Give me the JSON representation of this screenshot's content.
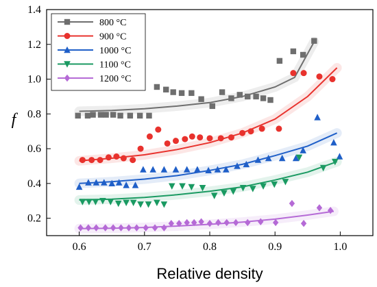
{
  "chart_data": {
    "type": "scatter",
    "xlabel": "Relative density",
    "ylabel": "f",
    "xlim": [
      0.55,
      1.05
    ],
    "ylim": [
      0.1,
      1.4
    ],
    "xticks": [
      0.6,
      0.7,
      0.8,
      0.9,
      1.0
    ],
    "yticks": [
      0.2,
      0.4,
      0.6,
      0.8,
      1.0,
      1.2,
      1.4
    ],
    "xtick_labels": [
      "0.6",
      "0.7",
      "0.8",
      "0.9",
      "1.0"
    ],
    "ytick_labels": [
      "0.2",
      "0.4",
      "0.6",
      "0.8",
      "1.0",
      "1.2",
      "1.4"
    ],
    "grid": false,
    "legend_position": "top-left",
    "series": [
      {
        "name": "800 °C",
        "color": "#6e6e6e",
        "marker": "square",
        "points": [
          [
            0.598,
            0.79
          ],
          [
            0.613,
            0.79
          ],
          [
            0.621,
            0.795
          ],
          [
            0.633,
            0.795
          ],
          [
            0.641,
            0.795
          ],
          [
            0.652,
            0.795
          ],
          [
            0.663,
            0.79
          ],
          [
            0.678,
            0.79
          ],
          [
            0.693,
            0.79
          ],
          [
            0.707,
            0.79
          ],
          [
            0.719,
            0.955
          ],
          [
            0.733,
            0.94
          ],
          [
            0.744,
            0.925
          ],
          [
            0.757,
            0.92
          ],
          [
            0.772,
            0.92
          ],
          [
            0.787,
            0.885
          ],
          [
            0.804,
            0.845
          ],
          [
            0.819,
            0.925
          ],
          [
            0.833,
            0.89
          ],
          [
            0.846,
            0.91
          ],
          [
            0.858,
            0.9
          ],
          [
            0.871,
            0.9
          ],
          [
            0.882,
            0.89
          ],
          [
            0.893,
            0.88
          ],
          [
            0.907,
            1.105
          ],
          [
            0.928,
            1.16
          ],
          [
            0.943,
            1.14
          ],
          [
            0.96,
            1.22
          ]
        ],
        "fit": [
          [
            0.6,
            0.815
          ],
          [
            0.65,
            0.82
          ],
          [
            0.7,
            0.83
          ],
          [
            0.75,
            0.845
          ],
          [
            0.8,
            0.865
          ],
          [
            0.85,
            0.9
          ],
          [
            0.9,
            0.955
          ],
          [
            0.93,
            1.01
          ],
          [
            0.96,
            1.215
          ]
        ]
      },
      {
        "name": "900 °C",
        "color": "#e8322d",
        "marker": "circle",
        "points": [
          [
            0.605,
            0.535
          ],
          [
            0.619,
            0.535
          ],
          [
            0.632,
            0.535
          ],
          [
            0.645,
            0.55
          ],
          [
            0.657,
            0.555
          ],
          [
            0.668,
            0.545
          ],
          [
            0.682,
            0.535
          ],
          [
            0.694,
            0.6
          ],
          [
            0.708,
            0.67
          ],
          [
            0.721,
            0.71
          ],
          [
            0.735,
            0.63
          ],
          [
            0.748,
            0.645
          ],
          [
            0.762,
            0.655
          ],
          [
            0.773,
            0.67
          ],
          [
            0.785,
            0.665
          ],
          [
            0.8,
            0.66
          ],
          [
            0.817,
            0.66
          ],
          [
            0.833,
            0.665
          ],
          [
            0.85,
            0.69
          ],
          [
            0.863,
            0.7
          ],
          [
            0.88,
            0.715
          ],
          [
            0.906,
            0.715
          ],
          [
            0.928,
            1.035
          ],
          [
            0.944,
            1.035
          ],
          [
            0.968,
            1.015
          ],
          [
            0.988,
            1.0
          ]
        ],
        "fit": [
          [
            0.6,
            0.53
          ],
          [
            0.65,
            0.545
          ],
          [
            0.7,
            0.565
          ],
          [
            0.75,
            0.595
          ],
          [
            0.8,
            0.635
          ],
          [
            0.85,
            0.69
          ],
          [
            0.9,
            0.77
          ],
          [
            0.95,
            0.9
          ],
          [
            0.995,
            1.065
          ]
        ]
      },
      {
        "name": "1000 °C",
        "color": "#1f5fc8",
        "marker": "triangle-up",
        "points": [
          [
            0.6,
            0.38
          ],
          [
            0.614,
            0.405
          ],
          [
            0.626,
            0.405
          ],
          [
            0.638,
            0.405
          ],
          [
            0.65,
            0.4
          ],
          [
            0.661,
            0.405
          ],
          [
            0.672,
            0.39
          ],
          [
            0.686,
            0.39
          ],
          [
            0.698,
            0.48
          ],
          [
            0.713,
            0.48
          ],
          [
            0.73,
            0.48
          ],
          [
            0.748,
            0.48
          ],
          [
            0.765,
            0.48
          ],
          [
            0.781,
            0.48
          ],
          [
            0.798,
            0.475
          ],
          [
            0.812,
            0.48
          ],
          [
            0.825,
            0.48
          ],
          [
            0.842,
            0.5
          ],
          [
            0.856,
            0.51
          ],
          [
            0.874,
            0.535
          ],
          [
            0.89,
            0.545
          ],
          [
            0.911,
            0.545
          ],
          [
            0.932,
            0.545
          ],
          [
            0.943,
            0.59
          ],
          [
            0.965,
            0.78
          ],
          [
            0.99,
            0.635
          ],
          [
            0.999,
            0.555
          ]
        ],
        "fit": [
          [
            0.6,
            0.4
          ],
          [
            0.65,
            0.41
          ],
          [
            0.7,
            0.425
          ],
          [
            0.75,
            0.445
          ],
          [
            0.8,
            0.475
          ],
          [
            0.85,
            0.51
          ],
          [
            0.9,
            0.56
          ],
          [
            0.95,
            0.615
          ],
          [
            0.995,
            0.69
          ]
        ]
      },
      {
        "name": "1100 °C",
        "color": "#1a9a62",
        "marker": "triangle-down",
        "points": [
          [
            0.605,
            0.295
          ],
          [
            0.615,
            0.295
          ],
          [
            0.625,
            0.295
          ],
          [
            0.636,
            0.3
          ],
          [
            0.648,
            0.295
          ],
          [
            0.66,
            0.285
          ],
          [
            0.672,
            0.29
          ],
          [
            0.683,
            0.29
          ],
          [
            0.694,
            0.28
          ],
          [
            0.706,
            0.28
          ],
          [
            0.719,
            0.29
          ],
          [
            0.73,
            0.28
          ],
          [
            0.742,
            0.385
          ],
          [
            0.758,
            0.385
          ],
          [
            0.772,
            0.38
          ],
          [
            0.789,
            0.375
          ],
          [
            0.807,
            0.33
          ],
          [
            0.822,
            0.345
          ],
          [
            0.836,
            0.355
          ],
          [
            0.851,
            0.375
          ],
          [
            0.866,
            0.37
          ],
          [
            0.882,
            0.385
          ],
          [
            0.899,
            0.395
          ],
          [
            0.916,
            0.41
          ],
          [
            0.937,
            0.55
          ],
          [
            0.974,
            0.49
          ],
          [
            0.992,
            0.525
          ]
        ],
        "fit": [
          [
            0.6,
            0.305
          ],
          [
            0.65,
            0.31
          ],
          [
            0.7,
            0.32
          ],
          [
            0.75,
            0.335
          ],
          [
            0.8,
            0.355
          ],
          [
            0.85,
            0.38
          ],
          [
            0.9,
            0.42
          ],
          [
            0.95,
            0.465
          ],
          [
            0.995,
            0.525
          ]
        ]
      },
      {
        "name": "1200 °C",
        "color": "#b56ad6",
        "marker": "diamond",
        "points": [
          [
            0.602,
            0.145
          ],
          [
            0.614,
            0.145
          ],
          [
            0.626,
            0.145
          ],
          [
            0.64,
            0.145
          ],
          [
            0.652,
            0.145
          ],
          [
            0.664,
            0.145
          ],
          [
            0.676,
            0.145
          ],
          [
            0.688,
            0.145
          ],
          [
            0.702,
            0.145
          ],
          [
            0.716,
            0.145
          ],
          [
            0.73,
            0.145
          ],
          [
            0.741,
            0.17
          ],
          [
            0.753,
            0.17
          ],
          [
            0.765,
            0.175
          ],
          [
            0.776,
            0.175
          ],
          [
            0.787,
            0.18
          ],
          [
            0.8,
            0.17
          ],
          [
            0.813,
            0.175
          ],
          [
            0.826,
            0.175
          ],
          [
            0.84,
            0.175
          ],
          [
            0.858,
            0.175
          ],
          [
            0.878,
            0.18
          ],
          [
            0.901,
            0.175
          ],
          [
            0.926,
            0.285
          ],
          [
            0.944,
            0.17
          ],
          [
            0.968,
            0.26
          ],
          [
            0.985,
            0.245
          ]
        ],
        "fit": [
          [
            0.6,
            0.14
          ],
          [
            0.65,
            0.142
          ],
          [
            0.7,
            0.147
          ],
          [
            0.75,
            0.155
          ],
          [
            0.8,
            0.165
          ],
          [
            0.85,
            0.178
          ],
          [
            0.9,
            0.195
          ],
          [
            0.95,
            0.218
          ],
          [
            0.99,
            0.24
          ]
        ]
      }
    ]
  }
}
